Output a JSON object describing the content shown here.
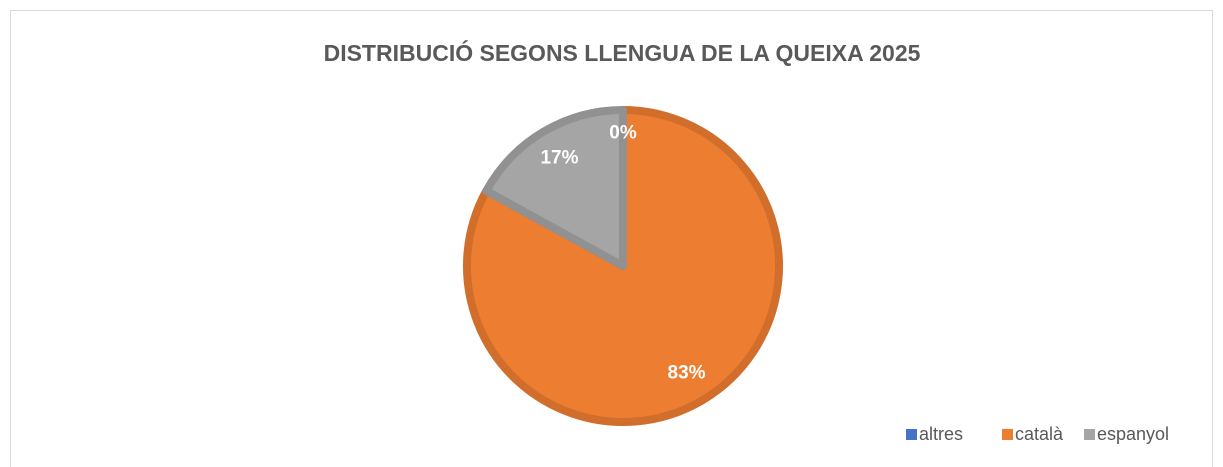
{
  "chart_data": {
    "type": "pie",
    "title": "DISTRIBUCIÓ SEGONS LLENGUA DE LA QUEIXA 2025",
    "categories": [
      "altres",
      "català",
      "espanyol"
    ],
    "values": [
      0,
      83,
      17
    ],
    "value_labels": [
      "0%",
      "83%",
      "17%"
    ],
    "colors": [
      "#4472c4",
      "#ed7d31",
      "#a5a5a5"
    ],
    "legend": "bottom-right"
  }
}
